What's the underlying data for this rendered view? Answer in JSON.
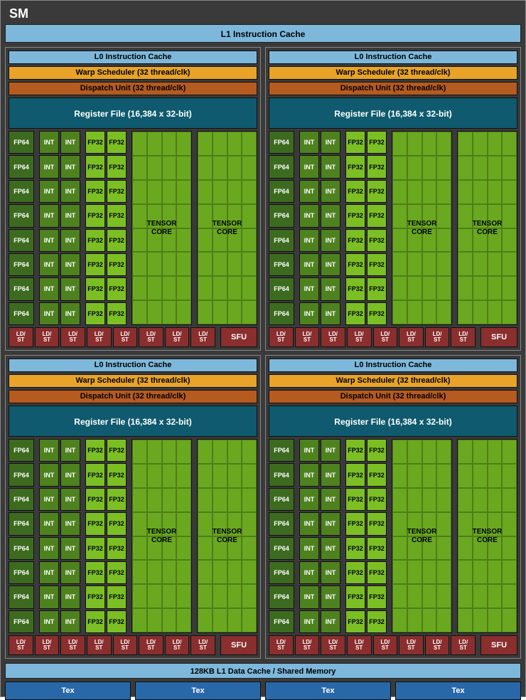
{
  "sm_title": "SM",
  "l1_instruction_cache": "L1 Instruction Cache",
  "l1_data_cache": "128KB L1 Data Cache / Shared Memory",
  "tex_label": "Tex",
  "tex_count": 4,
  "colors": {
    "background": "#3a3a3a",
    "l0_bar": "#7db8db",
    "warp_bar": "#e8a328",
    "dispatch_bar": "#b55b20",
    "regfile": "#0f5a6e",
    "fp64": "#3c6b1f",
    "int": "#4e821f",
    "fp32": "#7bbf24",
    "tensor": "#6aa820",
    "ldst_sfu": "#8a2e2e",
    "tex": "#2867a8"
  },
  "quadrant": {
    "l0_cache": "L0 Instruction Cache",
    "warp_scheduler": "Warp Scheduler (32 thread/clk)",
    "dispatch_unit": "Dispatch Unit (32 thread/clk)",
    "register_file": "Register File (16,384 x 32-bit)",
    "fp64_label": "FP64",
    "int_label": "INT",
    "fp32_label": "FP32",
    "tensor_label_1": "TENSOR",
    "tensor_label_2": "CORE",
    "ldst_label": "LD/\nST",
    "sfu_label": "SFU",
    "rows": 8,
    "ldst_count": 8,
    "tensor_count": 2,
    "tensor_grid_cols": 4,
    "tensor_grid_rows": 8
  },
  "quadrant_count": 4,
  "fontsize": {
    "title": 18,
    "bars": 11,
    "regfile": 12,
    "cells": 9,
    "tensor": 10,
    "ldst": 8,
    "sfu": 11
  }
}
